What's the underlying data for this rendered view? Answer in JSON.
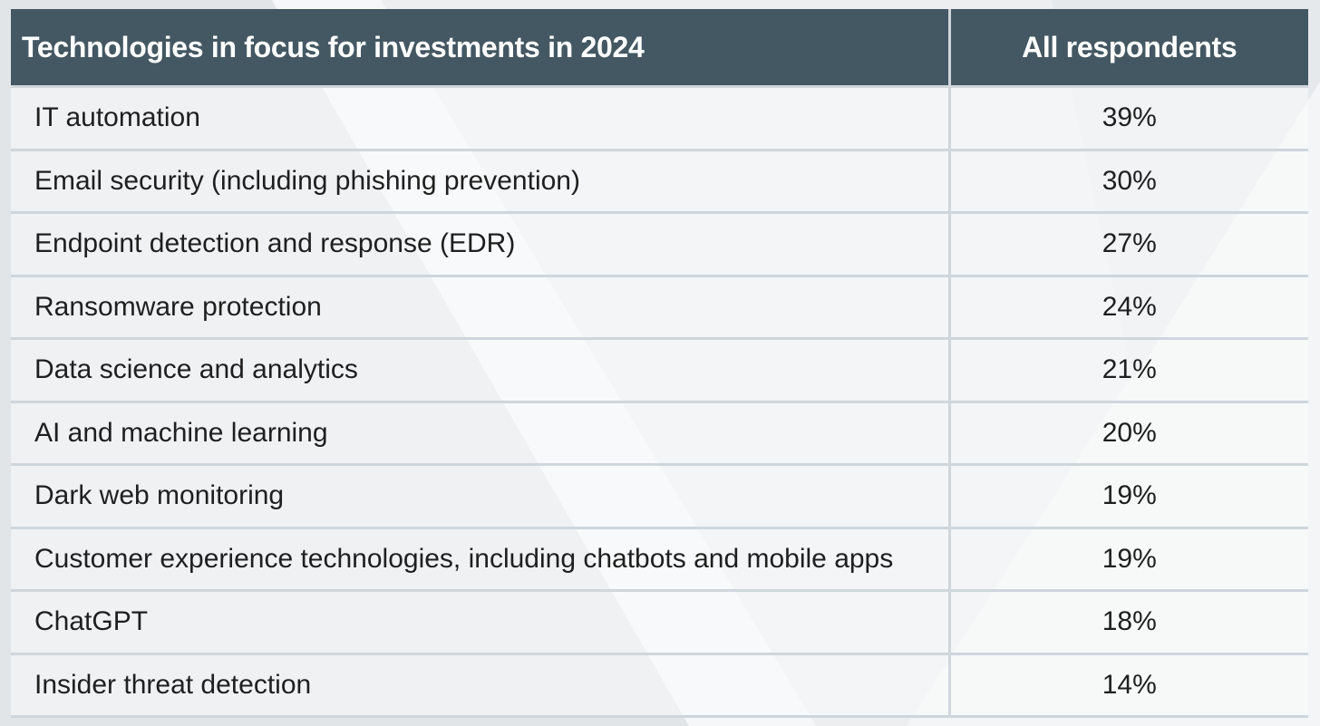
{
  "chart_data": {
    "type": "table",
    "columns": [
      "Technologies in focus for investments in 2024",
      "All respondents"
    ],
    "rows": [
      {
        "technology": "IT automation",
        "value": "39%"
      },
      {
        "technology": "Email security (including phishing prevention)",
        "value": "30%"
      },
      {
        "technology": "Endpoint detection and response (EDR)",
        "value": "27%"
      },
      {
        "technology": "Ransomware protection",
        "value": "24%"
      },
      {
        "technology": "Data science and analytics",
        "value": "21%"
      },
      {
        "technology": "AI and machine learning",
        "value": "20%"
      },
      {
        "technology": "Dark web monitoring",
        "value": "19%"
      },
      {
        "technology": "Customer experience technologies, including chatbots and mobile apps",
        "value": "19%"
      },
      {
        "technology": "ChatGPT",
        "value": "18%"
      },
      {
        "technology": "Insider threat detection",
        "value": "14%"
      }
    ]
  },
  "colors": {
    "header_bg": "#445863",
    "header_text": "#ffffff",
    "grid_line": "#cfd6dc",
    "cell_text": "#1f1f1f",
    "page_bg": "#eceef0"
  }
}
